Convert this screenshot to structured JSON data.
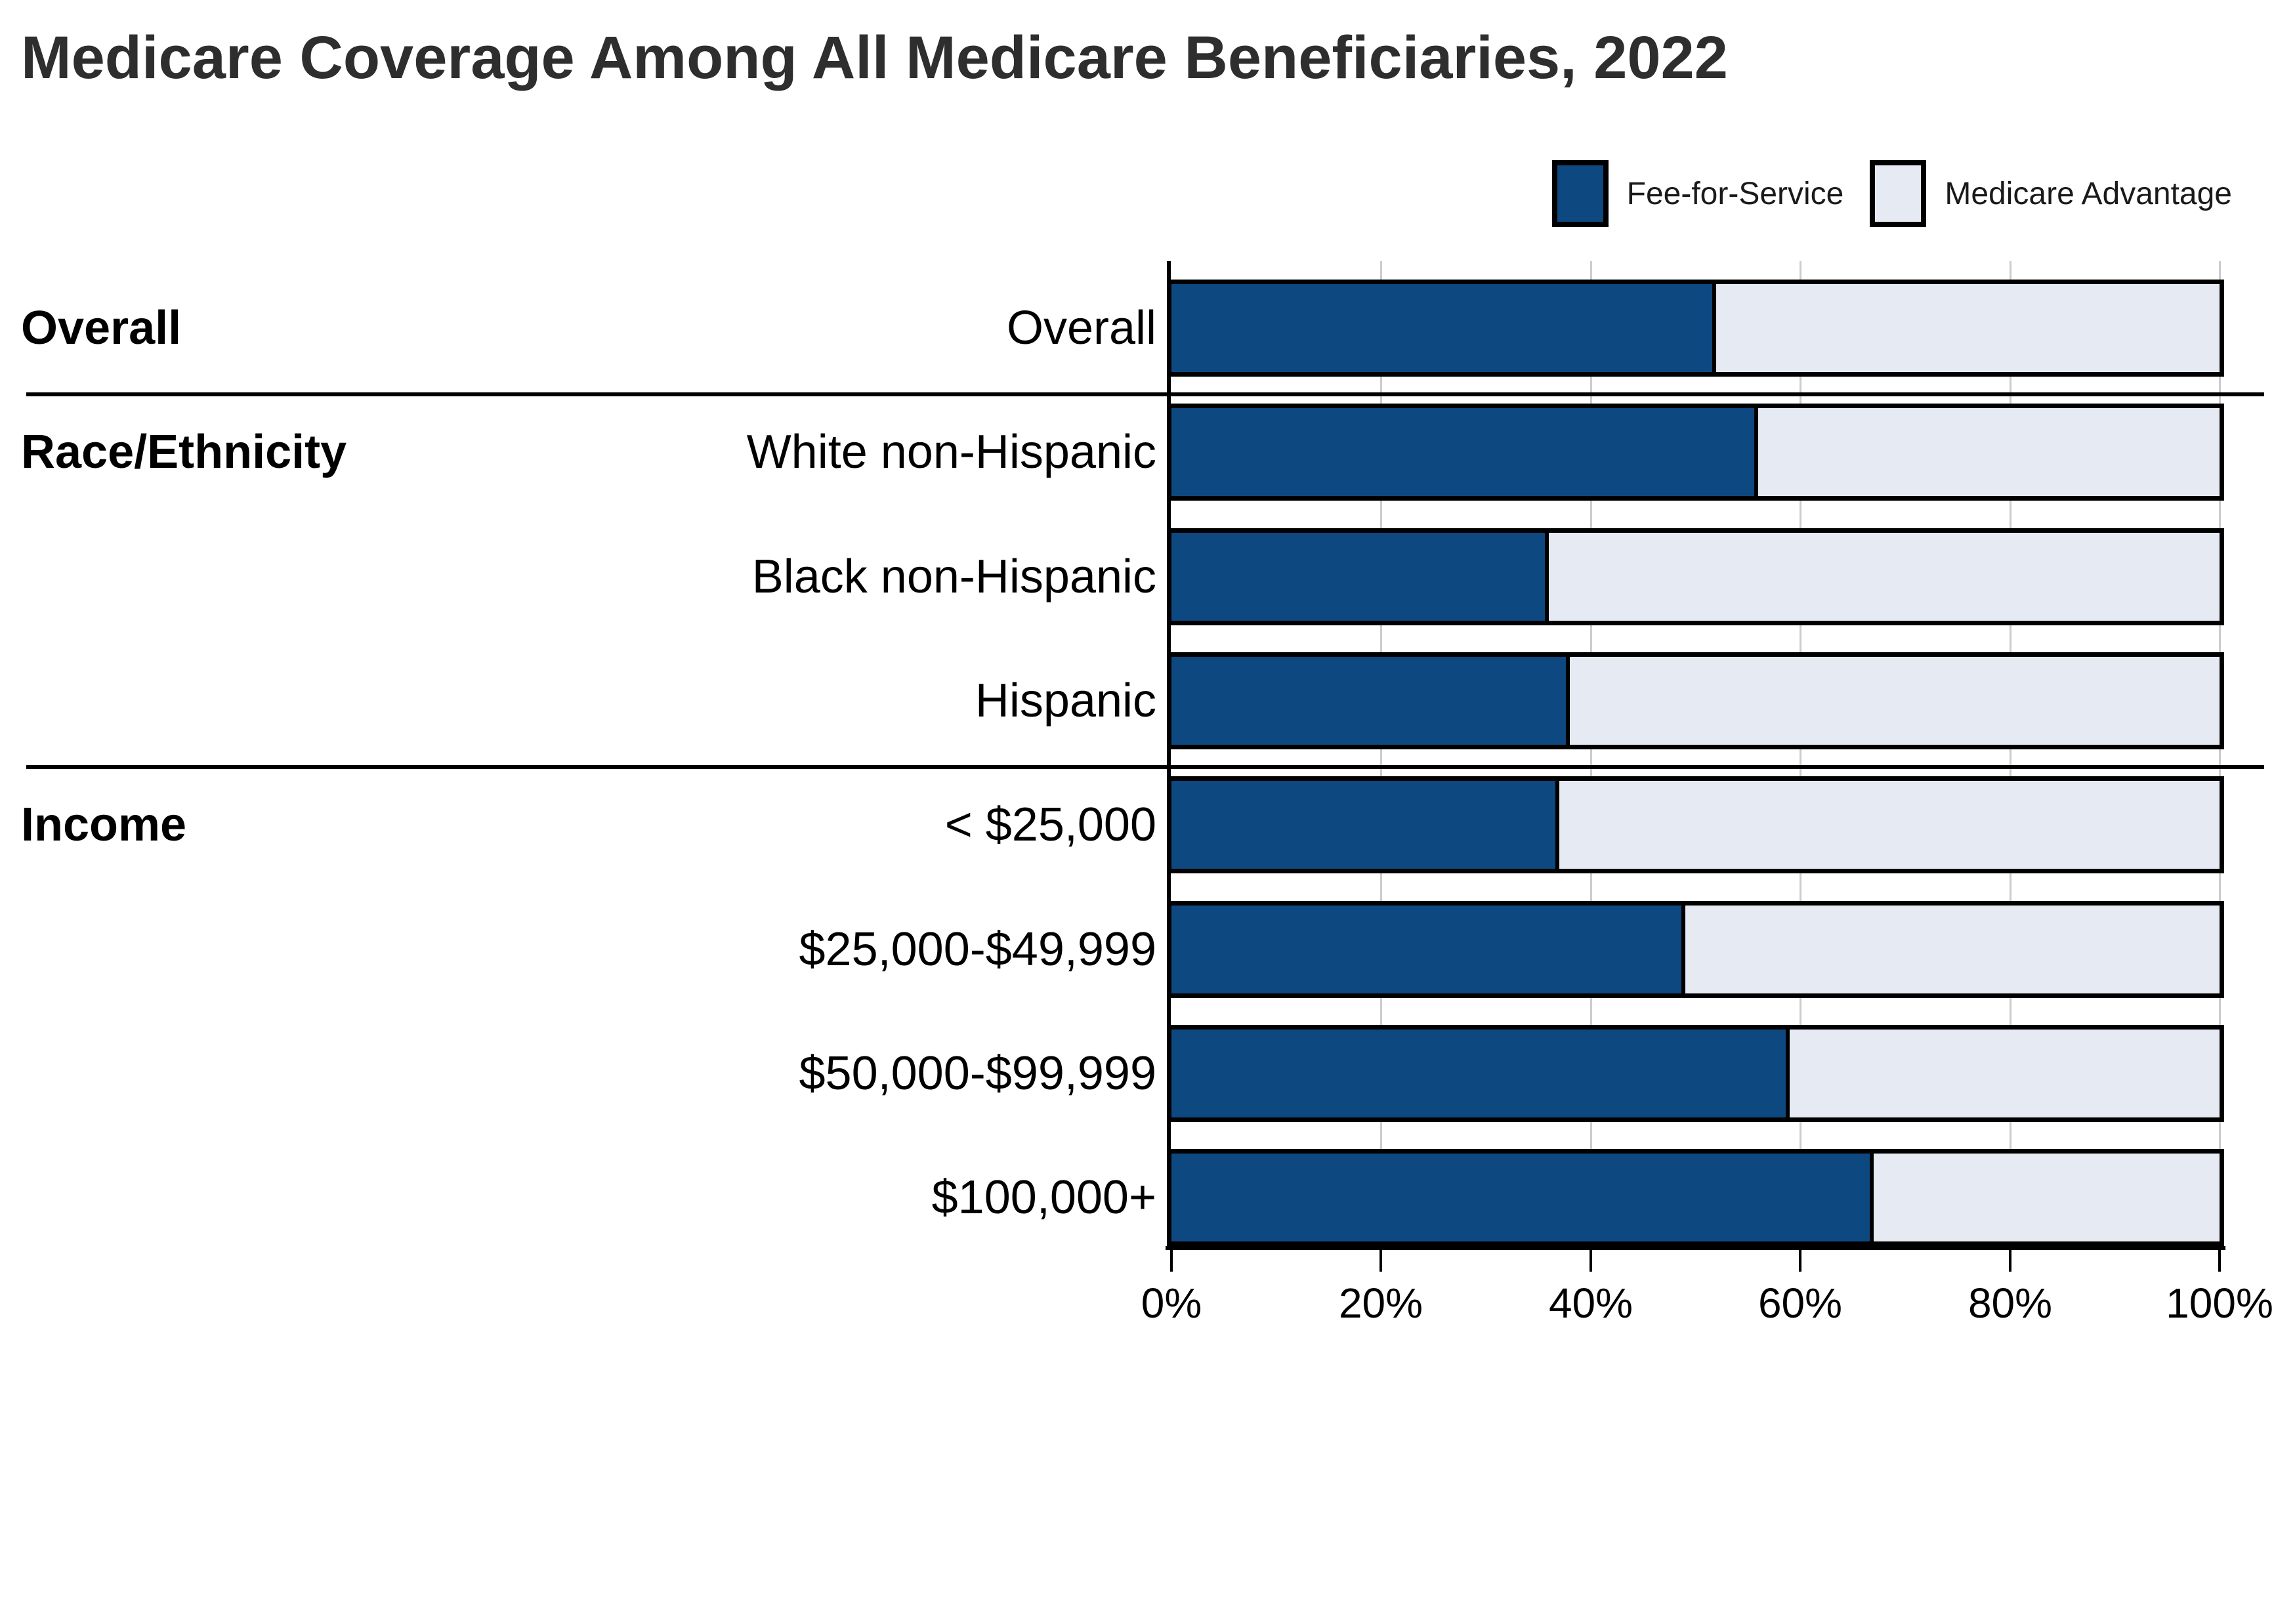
{
  "title": "Medicare Coverage Among All Medicare Beneficiaries, 2022",
  "legend": {
    "items": [
      {
        "label": "Fee-for-Service",
        "color": "#0D4880"
      },
      {
        "label": "Medicare Advantage",
        "color": "#E6EAF2"
      }
    ]
  },
  "colors": {
    "fee_for_service": "#0D4880",
    "medicare_advantage": "#E6EAF2",
    "bar_border": "#000000",
    "gridline": "#CCCCCC",
    "title_text": "#2E2E2E"
  },
  "groups": [
    {
      "label": "Overall",
      "row_index": 0
    },
    {
      "label": "Race/Ethnicity",
      "row_index": 1
    },
    {
      "label": "Income",
      "row_index": 4
    }
  ],
  "chart_data": {
    "type": "bar",
    "orientation": "horizontal",
    "stacked": true,
    "title": "Medicare Coverage Among All Medicare Beneficiaries, 2022",
    "categories": [
      "Overall",
      "White non-Hispanic",
      "Black non-Hispanic",
      "Hispanic",
      "< $25,000",
      "$25,000-$49,999",
      "$50,000-$99,999",
      "$100,000+"
    ],
    "series": [
      {
        "name": "Fee-for-Service",
        "values": [
          52,
          56,
          36,
          38,
          37,
          49,
          59,
          67
        ]
      },
      {
        "name": "Medicare Advantage",
        "values": [
          48,
          44,
          64,
          62,
          63,
          51,
          41,
          33
        ]
      }
    ],
    "x_ticks": [
      "0%",
      "20%",
      "40%",
      "60%",
      "80%",
      "100%"
    ],
    "xlim": [
      0,
      100
    ],
    "grid": "vertical",
    "legend_position": "top-right",
    "group_separators_after": [
      "Overall",
      "Hispanic"
    ]
  }
}
